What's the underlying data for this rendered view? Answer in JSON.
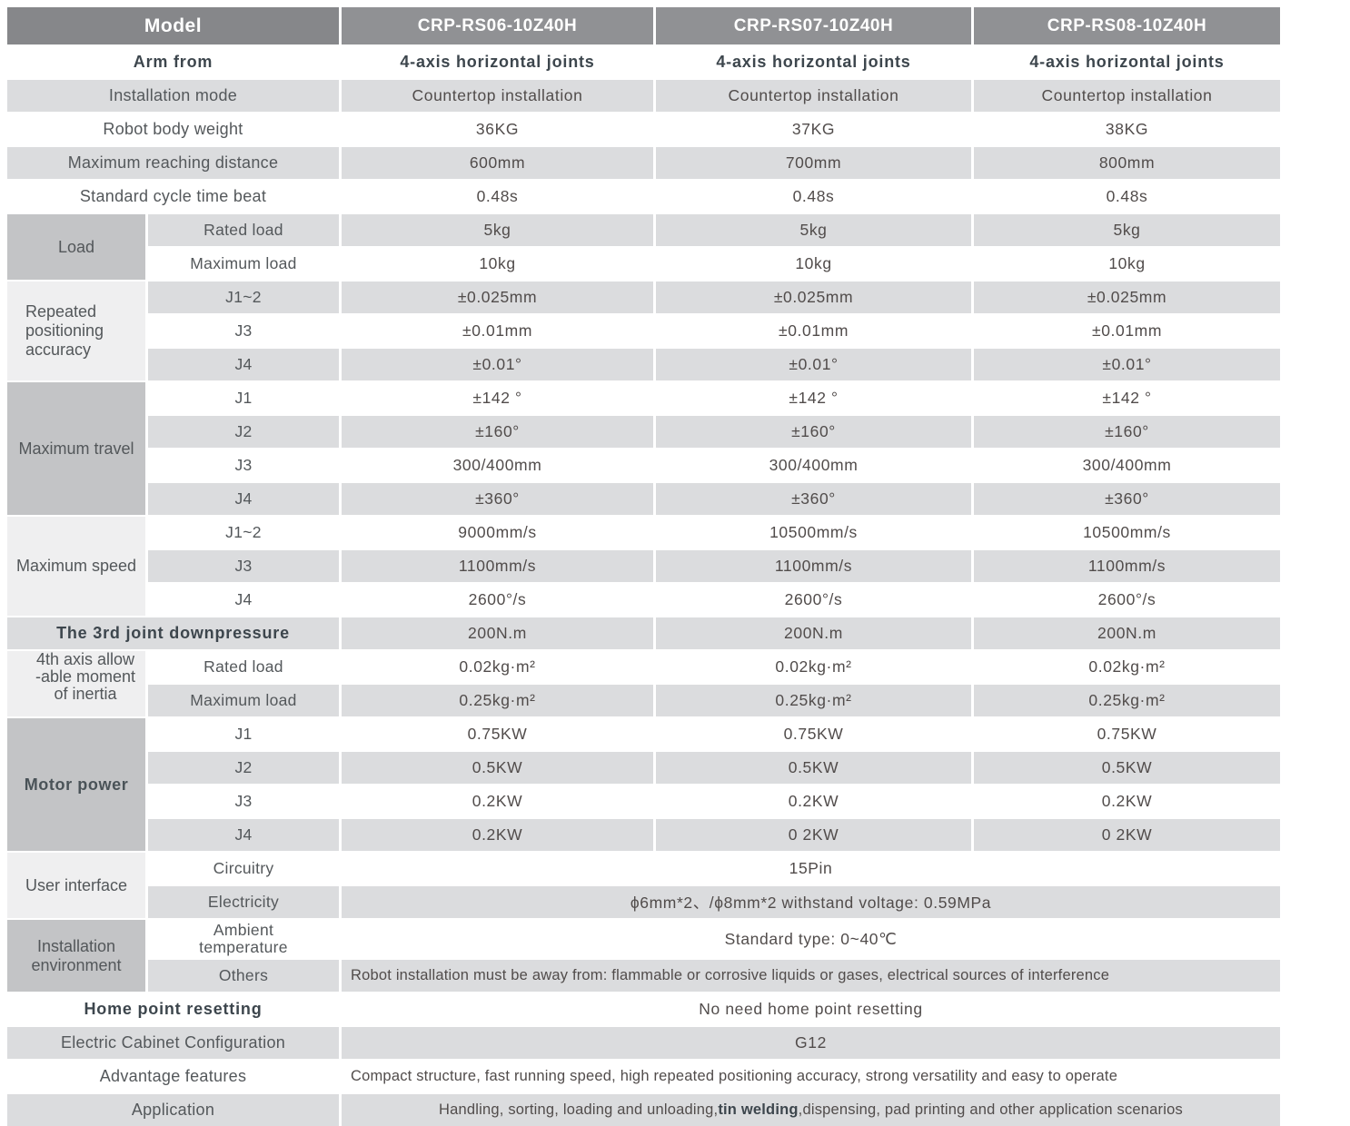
{
  "header": {
    "model_label": "Model",
    "models": [
      "CRP-RS06-10Z40H",
      "CRP-RS07-10Z40H",
      "CRP-RS08-10Z40H"
    ]
  },
  "sections": [
    {
      "kind": "row",
      "label": "Arm from",
      "labelBold": true,
      "shade": "w",
      "valuesBold": true,
      "values": [
        "4-axis horizontal joints",
        "4-axis horizontal joints",
        "4-axis horizontal joints"
      ]
    },
    {
      "kind": "row",
      "label": "Installation mode",
      "shade": "g",
      "values": [
        "Countertop installation",
        "Countertop installation",
        "Countertop installation"
      ]
    },
    {
      "kind": "row",
      "label": "Robot body weight",
      "shade": "w",
      "values": [
        "36KG",
        "37KG",
        "38KG"
      ]
    },
    {
      "kind": "row",
      "label": "Maximum reaching distance",
      "shade": "g",
      "values": [
        "600mm",
        "700mm",
        "800mm"
      ]
    },
    {
      "kind": "row",
      "label": "Standard cycle time beat",
      "shade": "w",
      "values": [
        "0.48s",
        "0.48s",
        "0.48s"
      ]
    },
    {
      "kind": "group",
      "label": "Load",
      "style": "med",
      "rows": [
        {
          "sub": "Rated load",
          "shade": "g",
          "values": [
            "5kg",
            "5kg",
            "5kg"
          ]
        },
        {
          "sub": "Maximum load",
          "shade": "w",
          "values": [
            "10kg",
            "10kg",
            "10kg"
          ]
        }
      ]
    },
    {
      "kind": "group",
      "label": "Repeated positioning accuracy",
      "style": "light",
      "align": "left",
      "rows": [
        {
          "sub": "J1~2",
          "shade": "g",
          "values": [
            "±0.025mm",
            "±0.025mm",
            "±0.025mm"
          ]
        },
        {
          "sub": "J3",
          "shade": "w",
          "values": [
            "±0.01mm",
            "±0.01mm",
            "±0.01mm"
          ]
        },
        {
          "sub": "J4",
          "shade": "g",
          "values": [
            "±0.01°",
            "±0.01°",
            "±0.01°"
          ]
        }
      ]
    },
    {
      "kind": "group",
      "label": "Maximum travel",
      "style": "med",
      "rows": [
        {
          "sub": "J1",
          "shade": "w",
          "values": [
            "±142 °",
            "±142 °",
            "±142 °"
          ]
        },
        {
          "sub": "J2",
          "shade": "g",
          "values": [
            "±160°",
            "±160°",
            "±160°"
          ]
        },
        {
          "sub": "J3",
          "shade": "w",
          "values": [
            "300/400mm",
            "300/400mm",
            "300/400mm"
          ]
        },
        {
          "sub": "J4",
          "shade": "g",
          "values": [
            "±360°",
            "±360°",
            "±360°"
          ]
        }
      ]
    },
    {
      "kind": "group",
      "label": "Maximum speed",
      "style": "light",
      "rows": [
        {
          "sub": "J1~2",
          "shade": "w",
          "values": [
            "9000mm/s",
            "10500mm/s",
            "10500mm/s"
          ]
        },
        {
          "sub": "J3",
          "shade": "g",
          "values": [
            "1100mm/s",
            "1100mm/s",
            "1100mm/s"
          ]
        },
        {
          "sub": "J4",
          "shade": "w",
          "values": [
            "2600°/s",
            "2600°/s",
            "2600°/s"
          ]
        }
      ]
    },
    {
      "kind": "row",
      "label": "The 3rd joint downpressure",
      "labelBold": true,
      "shade": "g",
      "values": [
        "200N.m",
        "200N.m",
        "200N.m"
      ]
    },
    {
      "kind": "group",
      "label": "4th axis allowable moment of inertia",
      "style": "light",
      "align": "left",
      "lines": [
        "4th axis allow",
        "-able moment",
        "of inertia"
      ],
      "rows": [
        {
          "sub": "Rated load",
          "shade": "w",
          "values": [
            "0.02kg·m²",
            "0.02kg·m²",
            "0.02kg·m²"
          ]
        },
        {
          "sub": "Maximum load",
          "shade": "g",
          "values": [
            "0.25kg·m²",
            "0.25kg·m²",
            "0.25kg·m²"
          ]
        }
      ]
    },
    {
      "kind": "group",
      "label": "Motor power",
      "style": "med",
      "bold": true,
      "rows": [
        {
          "sub": "J1",
          "shade": "w",
          "values": [
            "0.75KW",
            "0.75KW",
            "0.75KW"
          ]
        },
        {
          "sub": "J2",
          "shade": "g",
          "values": [
            "0.5KW",
            "0.5KW",
            "0.5KW"
          ]
        },
        {
          "sub": "J3",
          "shade": "w",
          "values": [
            "0.2KW",
            "0.2KW",
            "0.2KW"
          ]
        },
        {
          "sub": "J4",
          "shade": "g",
          "values": [
            "0.2KW",
            "0 2KW",
            "0 2KW"
          ]
        }
      ]
    },
    {
      "kind": "group",
      "label": "User interface",
      "style": "light",
      "rows": [
        {
          "sub": "Circuitry",
          "shade": "w",
          "span": "15Pin"
        },
        {
          "sub": "Electricity",
          "shade": "g",
          "span": "ϕ6mm*2、/ϕ8mm*2  withstand voltage: 0.59MPa"
        }
      ]
    },
    {
      "kind": "group",
      "label": "Installation environment",
      "style": "med",
      "rows": [
        {
          "sub": "Ambient temperature",
          "subLines": [
            "Ambient",
            "temperature"
          ],
          "shade": "w",
          "tall": true,
          "span": "Standard type:  0~40℃"
        },
        {
          "sub": "Others",
          "shade": "g",
          "spanAlign": "left",
          "spanSmall": true,
          "span": "Robot installation must be away from: flammable or corrosive liquids or gases, electrical sources of interference"
        }
      ]
    },
    {
      "kind": "row",
      "label": "Home point resetting",
      "labelBold": true,
      "shade": "w",
      "span": "No need home point resetting"
    },
    {
      "kind": "row",
      "label": "Electric Cabinet Configuration",
      "shade": "g",
      "span": "G12"
    },
    {
      "kind": "row",
      "label": "Advantage features",
      "shade": "w",
      "spanAlign": "left",
      "spanSmall": true,
      "span": "Compact structure, fast running speed, high repeated positioning accuracy, strong versatility and easy to operate"
    },
    {
      "kind": "row",
      "label": "Application",
      "shade": "g",
      "spanSmall": true,
      "spanParts": {
        "pre": "Handling, sorting, loading and unloading,",
        "bold": "tin welding",
        "post": ",dispensing, pad printing and other application scenarios"
      }
    }
  ]
}
